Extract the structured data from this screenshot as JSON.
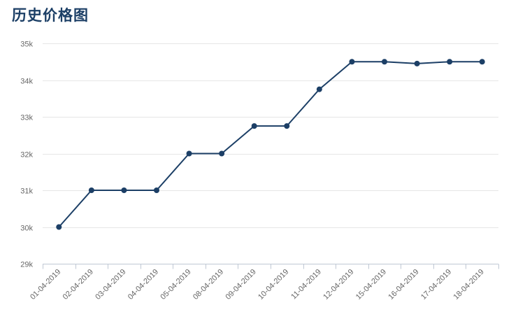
{
  "chart_data": {
    "type": "line",
    "title": "历史价格图",
    "xlabel": "",
    "ylabel": "",
    "categories": [
      "01-04-2019",
      "02-04-2019",
      "03-04-2019",
      "04-04-2019",
      "05-04-2019",
      "08-04-2019",
      "09-04-2019",
      "10-04-2019",
      "11-04-2019",
      "12-04-2019",
      "15-04-2019",
      "16-04-2019",
      "17-04-2019",
      "18-04-2019"
    ],
    "series": [
      {
        "values": [
          30000,
          31000,
          31000,
          31000,
          32000,
          32000,
          32750,
          32750,
          33750,
          34500,
          34500,
          34450,
          34500,
          34500
        ],
        "color": "#1c3f66"
      }
    ],
    "ylim": [
      29000,
      35000
    ],
    "yticks": [
      29000,
      30000,
      31000,
      32000,
      33000,
      34000,
      35000
    ],
    "ytick_labels": [
      "29k",
      "30k",
      "31k",
      "32k",
      "33k",
      "34k",
      "35k"
    ],
    "grid": true,
    "markers": true,
    "legend": "none"
  }
}
